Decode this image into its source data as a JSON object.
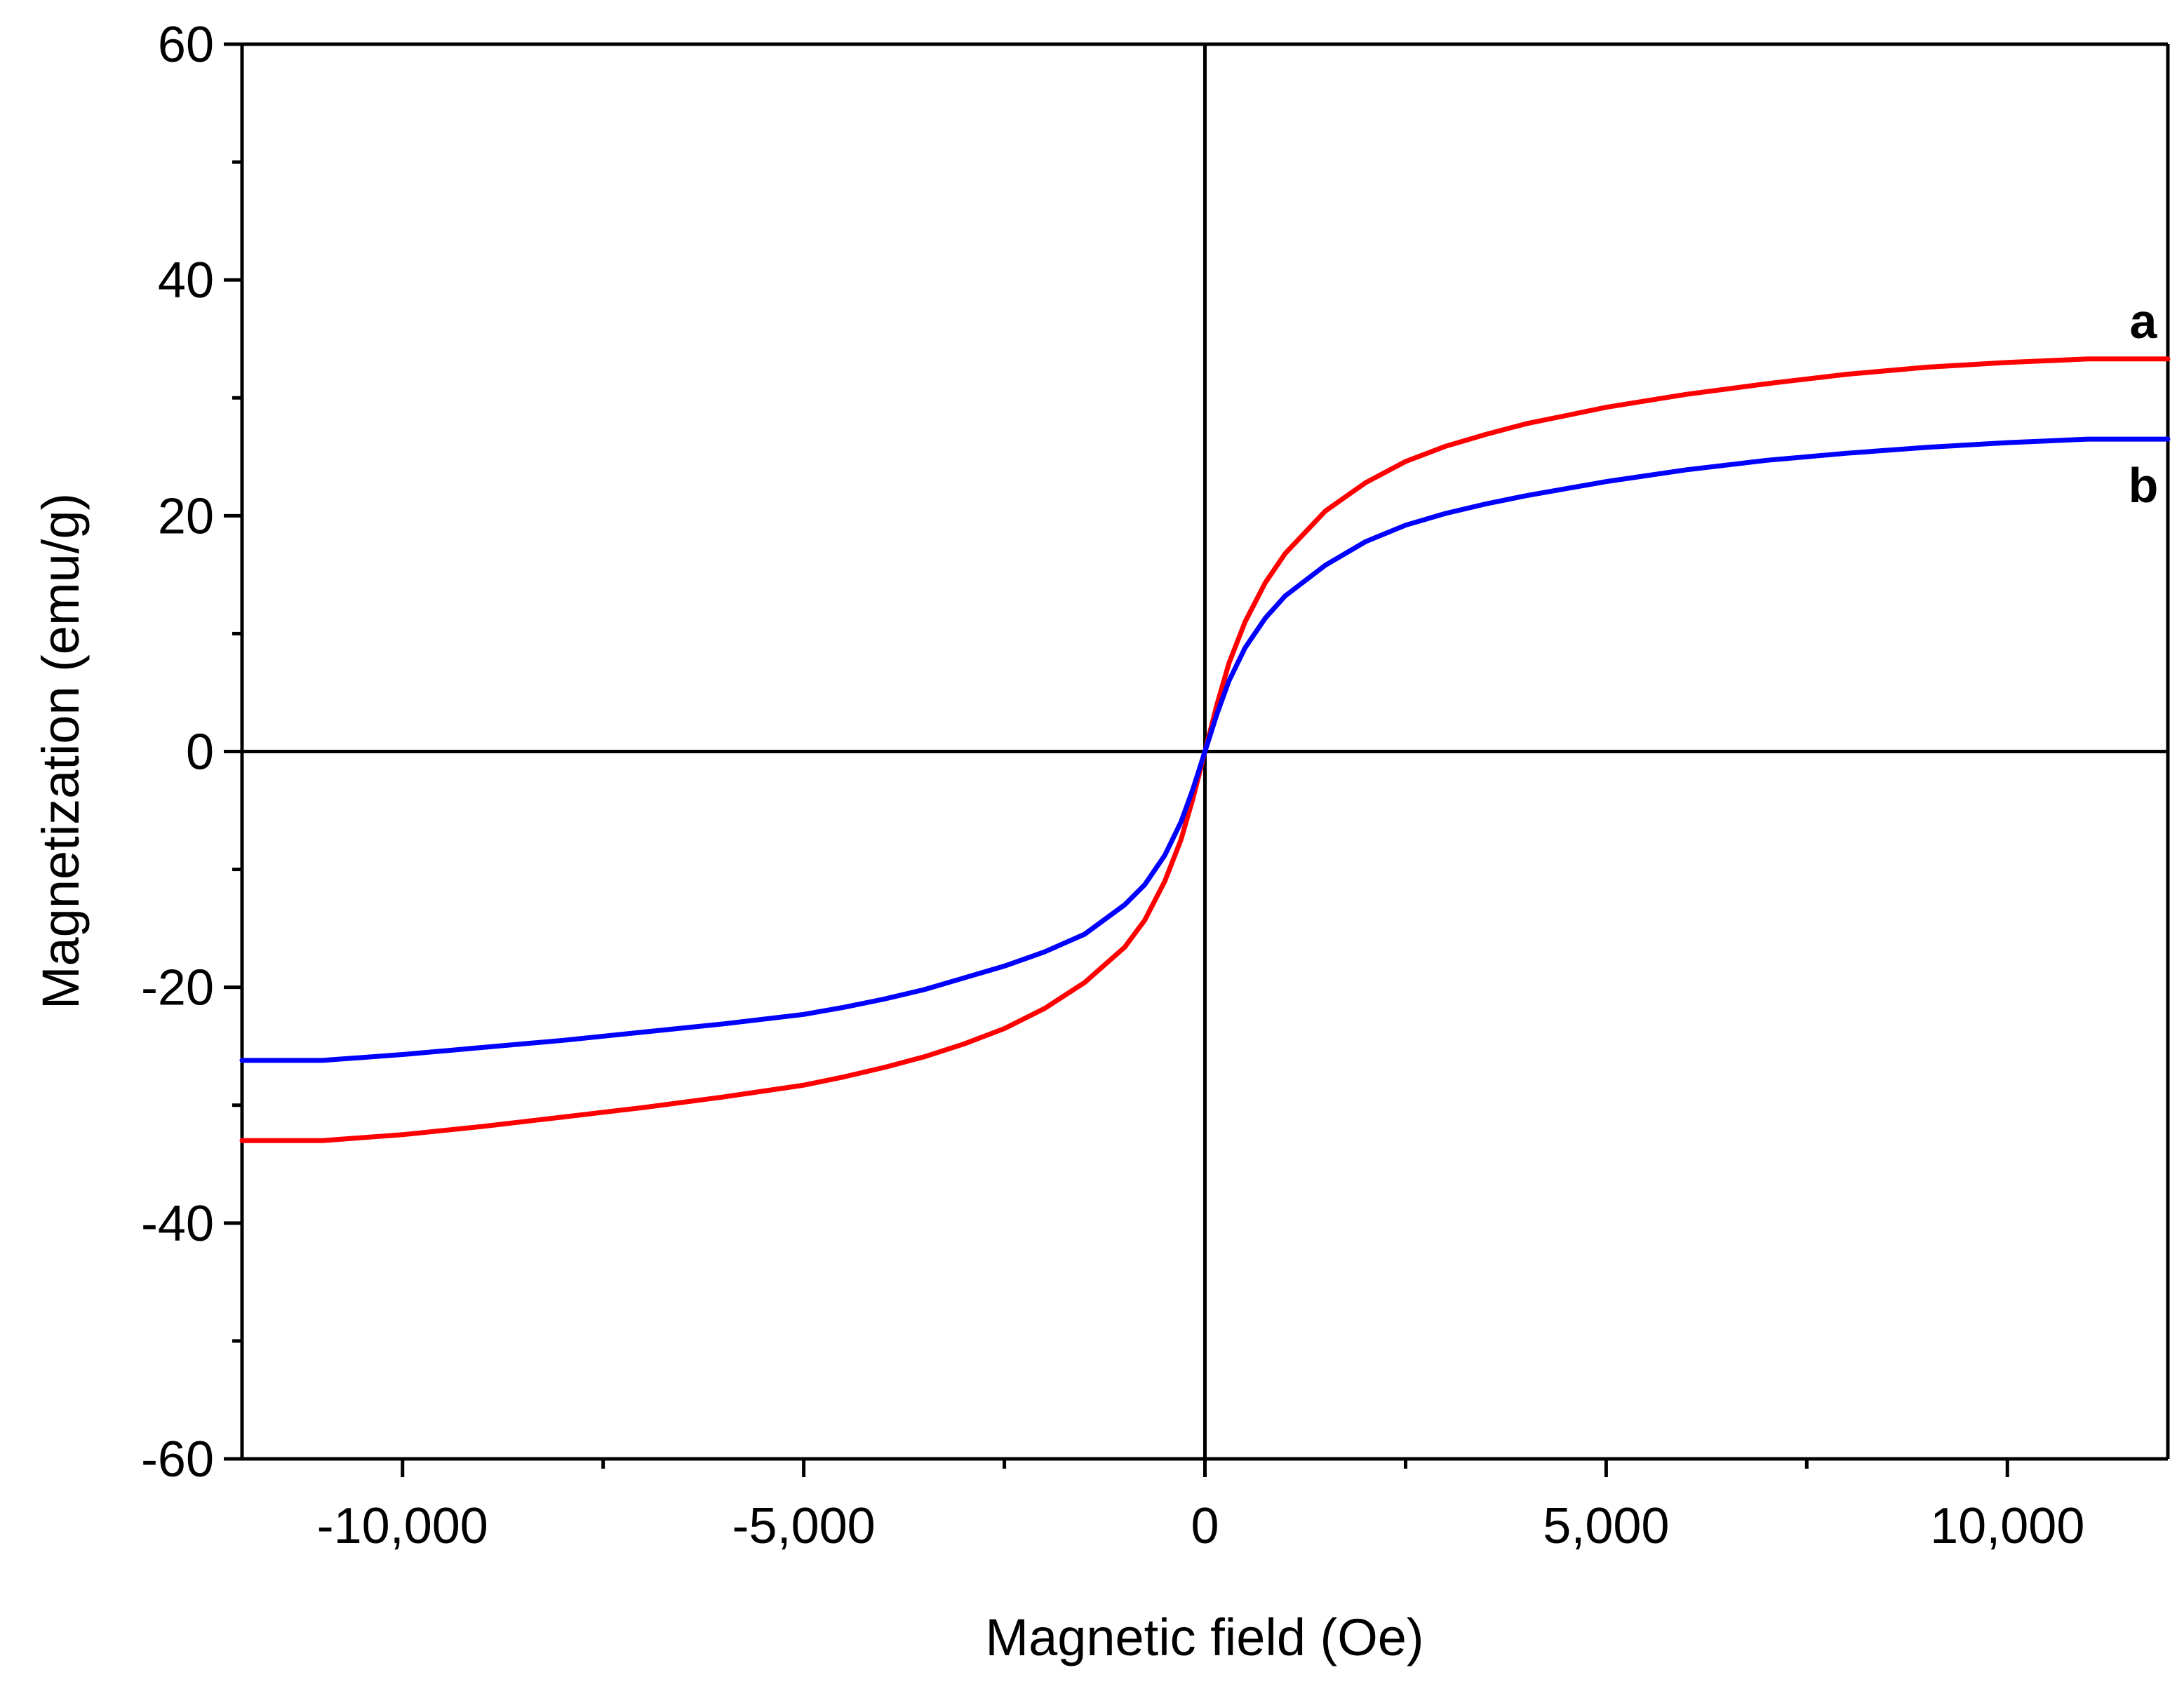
{
  "chart_data": {
    "type": "line",
    "title": "",
    "xlabel": "Magnetic field (Oe)",
    "ylabel": "Magnetization (emu/g)",
    "xlim": [
      -12000,
      12000
    ],
    "ylim": [
      -60,
      60
    ],
    "xticks": [
      -10000,
      -5000,
      0,
      5000,
      10000
    ],
    "xtick_labels": [
      "-10,000",
      "-5,000",
      "0",
      "5,000",
      "10,000"
    ],
    "yticks": [
      -60,
      -40,
      -20,
      0,
      20,
      40,
      60
    ],
    "ytick_labels": [
      "-60",
      "-40",
      "-20",
      "0",
      "20",
      "40",
      "60"
    ],
    "zero_lines": true,
    "grid": false,
    "series": [
      {
        "name": "a",
        "color": "#ff0000",
        "x": [
          -12000,
          -11000,
          -10000,
          -9000,
          -8000,
          -7000,
          -6000,
          -5000,
          -4500,
          -4000,
          -3500,
          -3000,
          -2500,
          -2000,
          -1500,
          -1000,
          -750,
          -500,
          -300,
          -150,
          0,
          150,
          300,
          500,
          750,
          1000,
          1500,
          2000,
          2500,
          3000,
          3500,
          4000,
          4500,
          5000,
          6000,
          7000,
          8000,
          9000,
          10000,
          11000,
          12000
        ],
        "values": [
          -33,
          -33,
          -32.5,
          -31.8,
          -31,
          -30.2,
          -29.3,
          -28.3,
          -27.6,
          -26.8,
          -25.9,
          -24.8,
          -23.5,
          -21.8,
          -19.6,
          -16.6,
          -14.3,
          -11,
          -7.5,
          -4,
          0,
          4,
          7.5,
          11,
          14.3,
          16.8,
          20.4,
          22.8,
          24.6,
          25.9,
          26.9,
          27.8,
          28.5,
          29.2,
          30.3,
          31.2,
          32,
          32.6,
          33,
          33.3,
          33.3
        ]
      },
      {
        "name": "b",
        "color": "#0000ff",
        "x": [
          -12000,
          -11000,
          -10000,
          -9000,
          -8000,
          -7000,
          -6000,
          -5000,
          -4500,
          -4000,
          -3500,
          -3000,
          -2500,
          -2000,
          -1500,
          -1000,
          -750,
          -500,
          -300,
          -150,
          0,
          150,
          300,
          500,
          750,
          1000,
          1500,
          2000,
          2500,
          3000,
          3500,
          4000,
          4500,
          5000,
          6000,
          7000,
          8000,
          9000,
          10000,
          11000,
          12000
        ],
        "values": [
          -26.2,
          -26.2,
          -25.7,
          -25.1,
          -24.5,
          -23.8,
          -23.1,
          -22.3,
          -21.7,
          -21,
          -20.2,
          -19.2,
          -18.2,
          -17,
          -15.5,
          -13,
          -11.3,
          -8.8,
          -6,
          -3.2,
          0,
          3.2,
          6,
          8.8,
          11.3,
          13.2,
          15.8,
          17.8,
          19.2,
          20.2,
          21,
          21.7,
          22.3,
          22.9,
          23.9,
          24.7,
          25.3,
          25.8,
          26.2,
          26.5,
          26.5
        ]
      }
    ],
    "annotations": [
      {
        "text": "a",
        "series": "a"
      },
      {
        "text": "b",
        "series": "b"
      }
    ]
  }
}
